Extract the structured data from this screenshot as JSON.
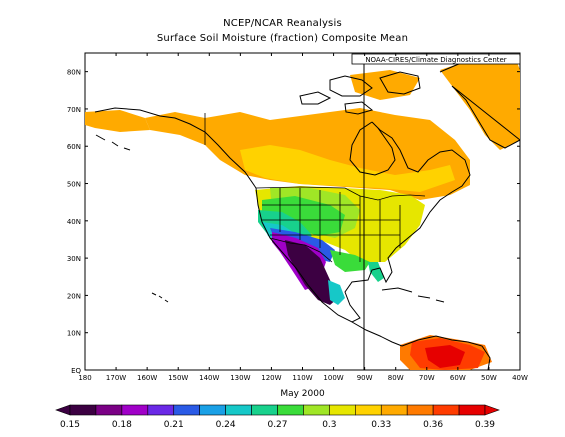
{
  "title": "NCEP/NCAR Reanalysis",
  "subtitle": "Surface Soil Moisture (fraction) Composite Mean",
  "credit": "NOAA-CIRES/Climate Diagnostics Center",
  "xlabel": "May 2000",
  "lat_ticks": [
    "EQ",
    "10N",
    "20N",
    "30N",
    "40N",
    "50N",
    "60N",
    "70N",
    "80N"
  ],
  "lon_ticks": [
    "180",
    "170W",
    "160W",
    "150W",
    "140W",
    "130W",
    "120W",
    "110W",
    "100W",
    "90W",
    "80W",
    "70W",
    "60W",
    "50W",
    "40W"
  ],
  "colorbar": {
    "labels": [
      "0.15",
      "0.18",
      "0.21",
      "0.24",
      "0.27",
      "0.3",
      "0.33",
      "0.36",
      "0.39"
    ],
    "colors": [
      "#3c0042",
      "#7a0085",
      "#a000c8",
      "#6a28e6",
      "#2a5ae6",
      "#1aa0e6",
      "#16c8c8",
      "#18d18c",
      "#3adc3a",
      "#a0e626",
      "#e6e600",
      "#ffd200",
      "#ffaa00",
      "#ff7a00",
      "#ff3c00",
      "#e60000"
    ]
  },
  "colors": {
    "ocean": "#ffffff",
    "coast": "#000000"
  }
}
